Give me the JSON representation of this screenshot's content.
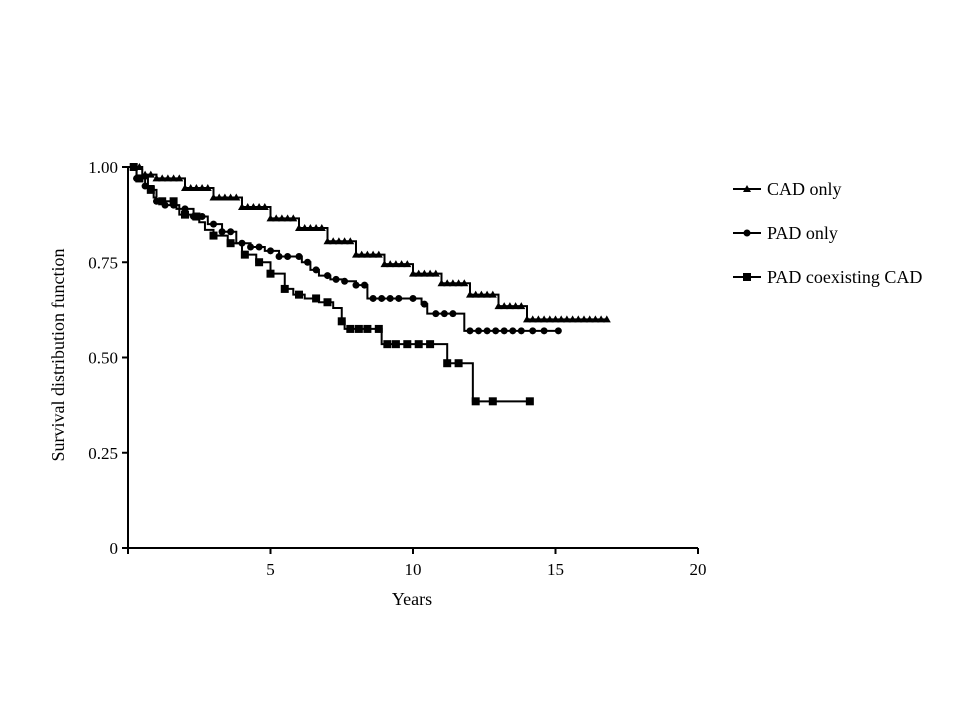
{
  "chart_data": {
    "type": "line",
    "title": "",
    "xlabel": "Years",
    "ylabel": "Survival distribution function",
    "xlim": [
      0,
      20
    ],
    "ylim": [
      0,
      1
    ],
    "x_ticks": [
      5,
      10,
      15,
      20
    ],
    "y_ticks": [
      0,
      0.25,
      0.5,
      0.75,
      1.0
    ],
    "x_tick_labels": [
      "5",
      "10",
      "15",
      "20"
    ],
    "y_tick_labels": [
      "0",
      "0.25",
      "0.50",
      "0.75",
      "1.00"
    ],
    "grid": false,
    "legend_position": "right",
    "step": true,
    "series": [
      {
        "name": "CAD only",
        "marker": "triangle",
        "color": "#000000",
        "points": [
          [
            0,
            1.0
          ],
          [
            0.5,
            0.98
          ],
          [
            1,
            0.97
          ],
          [
            2,
            0.945
          ],
          [
            3,
            0.92
          ],
          [
            4,
            0.895
          ],
          [
            5,
            0.865
          ],
          [
            6,
            0.84
          ],
          [
            7,
            0.805
          ],
          [
            8,
            0.77
          ],
          [
            9,
            0.745
          ],
          [
            10,
            0.72
          ],
          [
            11,
            0.695
          ],
          [
            12,
            0.665
          ],
          [
            13,
            0.635
          ],
          [
            14,
            0.6
          ],
          [
            15,
            0.6
          ],
          [
            16,
            0.6
          ],
          [
            16.8,
            0.6
          ]
        ],
        "marker_x": [
          0.2,
          0.4,
          0.6,
          0.8,
          1,
          1.2,
          1.4,
          1.6,
          1.8,
          2,
          2.2,
          2.4,
          2.6,
          2.8,
          3,
          3.2,
          3.4,
          3.6,
          3.8,
          4,
          4.2,
          4.4,
          4.6,
          4.8,
          5,
          5.2,
          5.4,
          5.6,
          5.8,
          6,
          6.2,
          6.4,
          6.6,
          6.8,
          7,
          7.2,
          7.4,
          7.6,
          7.8,
          8,
          8.2,
          8.4,
          8.6,
          8.8,
          9,
          9.2,
          9.4,
          9.6,
          9.8,
          10,
          10.2,
          10.4,
          10.6,
          10.8,
          11,
          11.2,
          11.4,
          11.6,
          11.8,
          12,
          12.2,
          12.4,
          12.6,
          12.8,
          13,
          13.2,
          13.4,
          13.6,
          13.8,
          14,
          14.2,
          14.4,
          14.6,
          14.8,
          15,
          15.2,
          15.4,
          15.6,
          15.8,
          16,
          16.2,
          16.4,
          16.6,
          16.8
        ]
      },
      {
        "name": "PAD only",
        "marker": "circle",
        "color": "#000000",
        "points": [
          [
            0,
            1.0
          ],
          [
            0.3,
            0.97
          ],
          [
            0.6,
            0.95
          ],
          [
            0.9,
            0.92
          ],
          [
            1,
            0.91
          ],
          [
            1.3,
            0.9
          ],
          [
            1.8,
            0.89
          ],
          [
            2.3,
            0.87
          ],
          [
            2.8,
            0.85
          ],
          [
            3.3,
            0.83
          ],
          [
            3.8,
            0.8
          ],
          [
            4.3,
            0.79
          ],
          [
            4.8,
            0.78
          ],
          [
            5.3,
            0.765
          ],
          [
            6.1,
            0.75
          ],
          [
            6.4,
            0.73
          ],
          [
            6.7,
            0.715
          ],
          [
            7.1,
            0.705
          ],
          [
            7.6,
            0.7
          ],
          [
            8.0,
            0.69
          ],
          [
            8.4,
            0.655
          ],
          [
            9.6,
            0.655
          ],
          [
            10.3,
            0.64
          ],
          [
            10.5,
            0.615
          ],
          [
            11.8,
            0.615
          ],
          [
            11.8,
            0.57
          ],
          [
            15.2,
            0.57
          ]
        ],
        "marker_x": [
          0.3,
          0.6,
          1,
          1.3,
          1.6,
          2,
          2.3,
          2.6,
          3,
          3.3,
          3.6,
          4,
          4.3,
          4.6,
          5,
          5.3,
          5.6,
          6,
          6.3,
          6.6,
          7,
          7.3,
          7.6,
          8,
          8.3,
          8.6,
          8.9,
          9.2,
          9.5,
          10,
          10.4,
          10.8,
          11.1,
          11.4,
          12,
          12.3,
          12.6,
          12.9,
          13.2,
          13.5,
          13.8,
          14.2,
          14.6,
          15.1
        ]
      },
      {
        "name": "PAD coexisting CAD",
        "marker": "square",
        "color": "#000000",
        "points": [
          [
            0,
            1.0
          ],
          [
            0.3,
            0.97
          ],
          [
            0.7,
            0.94
          ],
          [
            1,
            0.91
          ],
          [
            1.7,
            0.89
          ],
          [
            1.8,
            0.875
          ],
          [
            2.2,
            0.87
          ],
          [
            2.5,
            0.855
          ],
          [
            2.7,
            0.835
          ],
          [
            3.0,
            0.82
          ],
          [
            3.5,
            0.8
          ],
          [
            4.0,
            0.77
          ],
          [
            4.5,
            0.75
          ],
          [
            5.0,
            0.72
          ],
          [
            5.5,
            0.68
          ],
          [
            5.8,
            0.665
          ],
          [
            6.2,
            0.655
          ],
          [
            6.7,
            0.645
          ],
          [
            7.2,
            0.63
          ],
          [
            7.5,
            0.595
          ],
          [
            7.6,
            0.575
          ],
          [
            8.8,
            0.575
          ],
          [
            8.9,
            0.535
          ],
          [
            10.9,
            0.535
          ],
          [
            11.2,
            0.485
          ],
          [
            12.0,
            0.485
          ],
          [
            12.1,
            0.385
          ],
          [
            14.1,
            0.385
          ]
        ],
        "marker_x": [
          0.2,
          0.4,
          0.8,
          1.2,
          1.6,
          2,
          2.4,
          3,
          3.6,
          4.1,
          4.6,
          5,
          5.5,
          6,
          6.6,
          7,
          7.5,
          7.8,
          8.1,
          8.4,
          8.8,
          9.1,
          9.4,
          9.8,
          10.2,
          10.6,
          11.2,
          11.6,
          12.2,
          12.8,
          14.1
        ]
      }
    ]
  }
}
